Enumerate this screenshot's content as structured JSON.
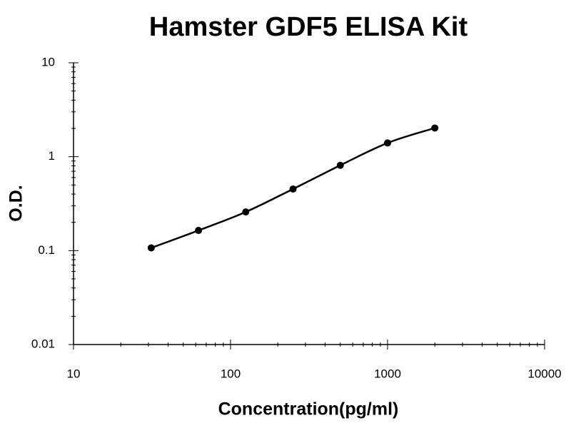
{
  "chart_data": {
    "type": "line",
    "title": "Hamster GDF5 ELISA Kit",
    "x_label": "Concentration(pg/ml)",
    "y_label": "O.D.",
    "x": [
      31.25,
      62.5,
      125,
      250,
      500,
      1000,
      2000
    ],
    "series": [
      {
        "color": "#000000",
        "values": [
          0.107,
          0.164,
          0.258,
          0.453,
          0.81,
          1.4,
          2.02
        ]
      }
    ],
    "xlim": [
      10,
      10000
    ],
    "ylim": [
      0.01,
      10
    ],
    "xticks": [
      10,
      100,
      1000,
      10000
    ],
    "yticks": [
      0.01,
      0.1,
      1,
      10
    ],
    "xscale": "log",
    "yscale": "log",
    "grid": false
  }
}
